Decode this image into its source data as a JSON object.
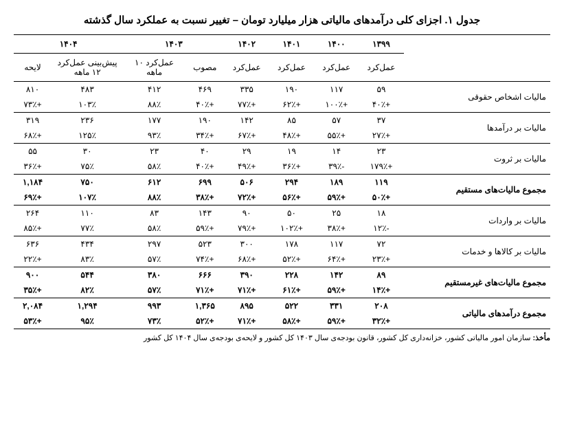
{
  "title": "جدول ۱. اجزای کلی درآمدهای مالیاتی هزار میلیارد تومان – تغییر نسبت به عملکرد سال گذشته",
  "years": [
    "۱۳۹۹",
    "۱۴۰۰",
    "۱۴۰۱",
    "۱۴۰۲",
    "۱۴۰۳",
    "۱۴۰۴"
  ],
  "subheaders": {
    "c0": "عمل‌کرد",
    "c1": "عمل‌کرد",
    "c2": "عمل‌کرد",
    "c3": "عمل‌کرد",
    "c4": "مصوب",
    "c5": "عمل‌کرد ۱۰ ماهه",
    "c6": "پیش‌بینی عمل‌کرد ۱۲ ماهه",
    "c7": "لایحه"
  },
  "rows": [
    {
      "label": "مالیات اشخاص حقوقی",
      "bold": false,
      "vals": [
        "۵۹",
        "۱۱۷",
        "۱۹۰",
        "۳۳۵",
        "۴۶۹",
        "۴۱۲",
        "۴۸۳",
        "۸۱۰"
      ],
      "pct": [
        "+۴۰٪",
        "+۱۰۰٪",
        "+۶۲٪",
        "+۷۷٪",
        "+۴۰٪",
        "۸۸٪",
        "۱۰۳٪",
        "+۷۳٪"
      ]
    },
    {
      "label": "مالیات بر درآمدها",
      "bold": false,
      "vals": [
        "۳۷",
        "۵۷",
        "۸۵",
        "۱۴۲",
        "۱۹۰",
        "۱۷۷",
        "۲۳۶",
        "۳۱۹"
      ],
      "pct": [
        "+۲۷٪",
        "+۵۵٪",
        "+۴۸٪",
        "+۶۷٪",
        "+۳۴٪",
        "۹۳٪",
        "۱۲۵٪",
        "+۶۸٪"
      ]
    },
    {
      "label": "مالیات بر ثروت",
      "bold": false,
      "vals": [
        "۲۳",
        "۱۴",
        "۱۹",
        "۲۹",
        "۴۰",
        "۲۳",
        "۳۰",
        "۵۵"
      ],
      "pct": [
        "+۱۷۹٪",
        "-۳۹٪",
        "+۳۶٪",
        "+۴۹٪",
        "+۴۰٪",
        "۵۸٪",
        "۷۵٪",
        "+۳۶٪"
      ]
    },
    {
      "label": "مجموع مالیات‌های مستقیم",
      "bold": true,
      "vals": [
        "۱۱۹",
        "۱۸۹",
        "۲۹۴",
        "۵۰۶",
        "۶۹۹",
        "۶۱۲",
        "۷۵۰",
        "۱,۱۸۴"
      ],
      "pct": [
        "+۵۰٪",
        "+۵۹٪",
        "+۵۶٪",
        "+۷۲٪",
        "+۳۸٪",
        "۸۸٪",
        "۱۰۷٪",
        "+۶۹٪"
      ]
    },
    {
      "label": "مالیات بر واردات",
      "bold": false,
      "vals": [
        "۱۸",
        "۲۵",
        "۵۰",
        "۹۰",
        "۱۴۳",
        "۸۳",
        "۱۱۰",
        "۲۶۴"
      ],
      "pct": [
        "-۱۲٪",
        "+۳۸٪",
        "+۱۰۲٪",
        "+۷۹٪",
        "+۵۹٪",
        "۵۸٪",
        "۷۷٪",
        "+۸۵٪"
      ]
    },
    {
      "label": "مالیات بر کالاها و خدمات",
      "bold": false,
      "vals": [
        "۷۲",
        "۱۱۷",
        "۱۷۸",
        "۳۰۰",
        "۵۲۳",
        "۲۹۷",
        "۴۳۴",
        "۶۳۶"
      ],
      "pct": [
        "+۲۳٪",
        "+۶۴٪",
        "+۵۲٪",
        "+۶۸٪",
        "+۷۴٪",
        "۵۷٪",
        "۸۳٪",
        "+۲۲٪"
      ]
    },
    {
      "label": "مجموع مالیات‌های غیرمستقیم",
      "bold": true,
      "vals": [
        "۸۹",
        "۱۴۲",
        "۲۲۸",
        "۳۹۰",
        "۶۶۶",
        "۳۸۰",
        "۵۴۴",
        "۹۰۰"
      ],
      "pct": [
        "+۱۴٪",
        "+۵۹٪",
        "+۶۱٪",
        "+۷۱٪",
        "+۷۱٪",
        "۵۷٪",
        "۸۲٪",
        "+۳۵٪"
      ]
    },
    {
      "label": "مجموع درآمدهای مالیاتی",
      "bold": true,
      "vals": [
        "۲۰۸",
        "۳۳۱",
        "۵۲۲",
        "۸۹۵",
        "۱,۳۶۵",
        "۹۹۳",
        "۱,۲۹۴",
        "۲,۰۸۴"
      ],
      "pct": [
        "+۳۲٪",
        "+۵۹٪",
        "+۵۸٪",
        "+۷۱٪",
        "+۵۲٪",
        "۷۳٪",
        "۹۵٪",
        "+۵۳٪"
      ]
    }
  ],
  "footnote_label": "مأخذ:",
  "footnote": "سازمان امور مالیاتی کشور، خزانه‌داری کل کشور، قانون بودجه‌ی سال ۱۴۰۳ کل کشور و لایحه‌ی بودجه‌ی سال ۱۴۰۴ کل کشور",
  "style": {
    "table_type": "table",
    "background_color": "#ffffff",
    "text_color": "#000000",
    "border_color": "#000000",
    "title_fontsize": 15,
    "body_fontsize": 12,
    "footnote_fontsize": 11,
    "col_widths_pct": [
      18,
      10,
      10,
      10,
      10,
      10,
      10,
      11,
      11
    ]
  }
}
